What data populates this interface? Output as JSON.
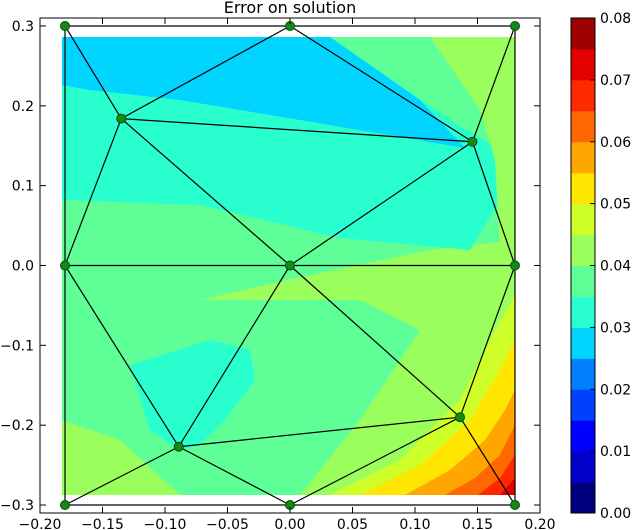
{
  "chart_data": {
    "type": "contour",
    "title": "Error on solution",
    "xlim": [
      -0.2,
      0.2
    ],
    "ylim": [
      -0.31,
      0.31
    ],
    "xticks": [
      -0.2,
      -0.15,
      -0.1,
      -0.05,
      0.0,
      0.05,
      0.1,
      0.15,
      0.2
    ],
    "xtick_labels": [
      "−0.20",
      "−0.15",
      "−0.10",
      "−0.05",
      "0.00",
      "0.05",
      "0.10",
      "0.15",
      "0.20"
    ],
    "yticks": [
      0.3,
      0.2,
      0.1,
      0.0,
      -0.1,
      -0.2,
      -0.3
    ],
    "ytick_labels": [
      "0.3",
      "0.2",
      "0.1",
      "0.0",
      "−0.1",
      "−0.2",
      "−0.3"
    ],
    "colorbar": {
      "ticks": [
        0.0,
        0.01,
        0.02,
        0.03,
        0.04,
        0.05,
        0.06,
        0.07,
        0.08
      ],
      "tick_labels": [
        "0.00",
        "0.01",
        "0.02",
        "0.03",
        "0.04",
        "0.05",
        "0.06",
        "0.07",
        "0.08"
      ],
      "levels": [
        {
          "range": [
            0.0,
            0.005
          ],
          "color": "#00007f"
        },
        {
          "range": [
            0.005,
            0.01
          ],
          "color": "#0000c8"
        },
        {
          "range": [
            0.01,
            0.015
          ],
          "color": "#0000ff"
        },
        {
          "range": [
            0.015,
            0.02
          ],
          "color": "#0040ff"
        },
        {
          "range": [
            0.02,
            0.025
          ],
          "color": "#0080ff"
        },
        {
          "range": [
            0.025,
            0.03
          ],
          "color": "#00d4ff"
        },
        {
          "range": [
            0.03,
            0.035
          ],
          "color": "#29ffce"
        },
        {
          "range": [
            0.035,
            0.04
          ],
          "color": "#5fff98"
        },
        {
          "range": [
            0.04,
            0.045
          ],
          "color": "#9aff5d"
        },
        {
          "range": [
            0.045,
            0.05
          ],
          "color": "#ceff29"
        },
        {
          "range": [
            0.05,
            0.055
          ],
          "color": "#ffe600"
        },
        {
          "range": [
            0.055,
            0.06
          ],
          "color": "#ffa700"
        },
        {
          "range": [
            0.06,
            0.065
          ],
          "color": "#ff6800"
        },
        {
          "range": [
            0.065,
            0.07
          ],
          "color": "#ff2900"
        },
        {
          "range": [
            0.07,
            0.075
          ],
          "color": "#e50000"
        },
        {
          "range": [
            0.075,
            0.08
          ],
          "color": "#9f0000"
        }
      ]
    },
    "nodes": [
      [
        -0.18,
        0.3
      ],
      [
        0.0,
        0.3
      ],
      [
        0.18,
        0.3
      ],
      [
        -0.135,
        0.184
      ],
      [
        0.146,
        0.155
      ],
      [
        -0.18,
        0.0
      ],
      [
        0.0,
        0.0
      ],
      [
        0.18,
        0.0
      ],
      [
        0.136,
        -0.19
      ],
      [
        -0.089,
        -0.227
      ],
      [
        -0.18,
        -0.3
      ],
      [
        0.0,
        -0.3
      ],
      [
        0.18,
        -0.3
      ]
    ],
    "triangles": [
      [
        0,
        1,
        3
      ],
      [
        1,
        4,
        3
      ],
      [
        1,
        2,
        4
      ],
      [
        0,
        3,
        5
      ],
      [
        3,
        6,
        5
      ],
      [
        3,
        4,
        6
      ],
      [
        4,
        2,
        7
      ],
      [
        4,
        7,
        6
      ],
      [
        5,
        6,
        9
      ],
      [
        6,
        8,
        9
      ],
      [
        6,
        7,
        8
      ],
      [
        7,
        12,
        8
      ],
      [
        5,
        9,
        10
      ],
      [
        9,
        11,
        10
      ],
      [
        9,
        8,
        11
      ],
      [
        8,
        12,
        11
      ]
    ],
    "field_samples": [
      {
        "x": -0.08,
        "y": 0.26,
        "value": 0.032
      },
      {
        "x": 0.08,
        "y": 0.25,
        "value": 0.033
      },
      {
        "x": 0.16,
        "y": 0.25,
        "value": 0.042
      },
      {
        "x": -0.15,
        "y": 0.05,
        "value": 0.038
      },
      {
        "x": 0.09,
        "y": 0.1,
        "value": 0.036
      },
      {
        "x": -0.06,
        "y": -0.12,
        "value": 0.034
      },
      {
        "x": 0.08,
        "y": -0.08,
        "value": 0.043
      },
      {
        "x": 0.17,
        "y": -0.28,
        "value": 0.072
      }
    ]
  }
}
